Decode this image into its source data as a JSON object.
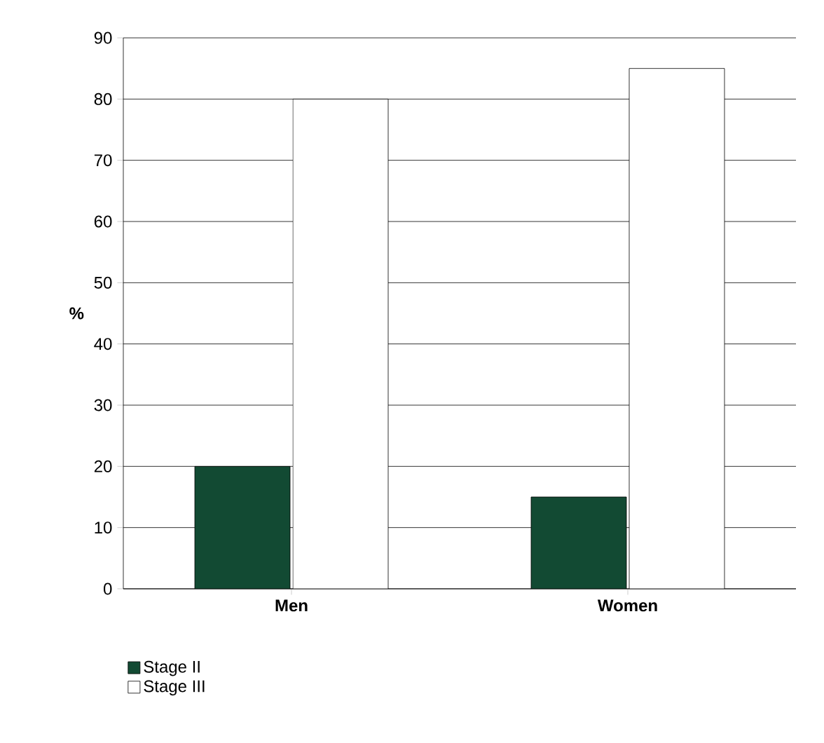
{
  "chart_data": {
    "type": "bar",
    "ylabel": "%",
    "categories": [
      "Men",
      "Women"
    ],
    "series": [
      {
        "name": "Stage II",
        "color": "#124a33",
        "values": [
          20,
          15
        ]
      },
      {
        "name": "Stage III",
        "color": "#ffffff",
        "values": [
          80,
          85
        ]
      }
    ],
    "ylim": [
      0,
      90
    ],
    "yticks": [
      0,
      10,
      20,
      30,
      40,
      50,
      60,
      70,
      80,
      90
    ],
    "grid": "y",
    "legend": "bottom left"
  }
}
